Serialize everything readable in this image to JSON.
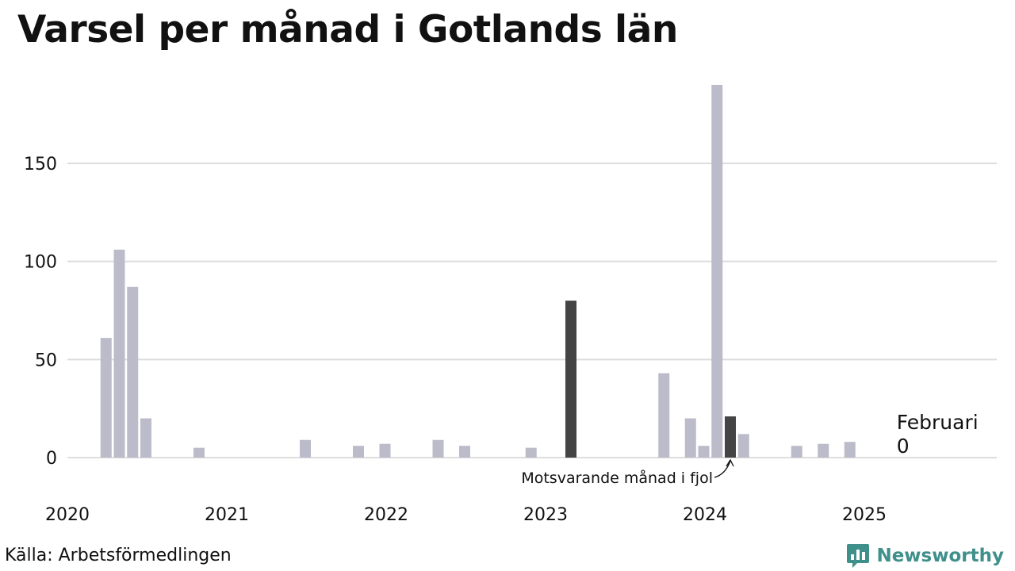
{
  "title": "Varsel per månad i Gotlands län",
  "source": "Källa: Arbetsförmedlingen",
  "brand": {
    "name": "Newsworthy",
    "icon": "newsworthy-logo-icon",
    "color": "#3f8f8b"
  },
  "colors": {
    "bar": "#bcbbc9",
    "highlight": "#444444",
    "grid": "#dddddd"
  },
  "annotation": "Motsvarande månad i fjol",
  "callout": {
    "month": "Februari",
    "value": "0"
  },
  "chart_data": {
    "type": "bar",
    "title": "Varsel per månad i Gotlands län",
    "xlabel": "",
    "ylabel": "",
    "ylim": [
      0,
      190
    ],
    "yticks": [
      0,
      50,
      100,
      150
    ],
    "xticks": [
      "2020",
      "2021",
      "2022",
      "2023",
      "2024",
      "2025"
    ],
    "grid": true,
    "x_start": "2020-01",
    "x_end": "2025-12",
    "series": [
      {
        "values": [
          {
            "month": "2020-02",
            "value": 61
          },
          {
            "month": "2020-03",
            "value": 106
          },
          {
            "month": "2020-04",
            "value": 87
          },
          {
            "month": "2020-05",
            "value": 20
          },
          {
            "month": "2020-09",
            "value": 5
          },
          {
            "month": "2021-05",
            "value": 9
          },
          {
            "month": "2021-09",
            "value": 6
          },
          {
            "month": "2021-11",
            "value": 7
          },
          {
            "month": "2022-03",
            "value": 9
          },
          {
            "month": "2022-05",
            "value": 6
          },
          {
            "month": "2022-10",
            "value": 5
          },
          {
            "month": "2023-01",
            "value": 80,
            "highlight": true
          },
          {
            "month": "2023-08",
            "value": 43
          },
          {
            "month": "2023-10",
            "value": 20
          },
          {
            "month": "2023-11",
            "value": 6
          },
          {
            "month": "2023-12",
            "value": 190
          },
          {
            "month": "2024-01",
            "value": 21,
            "highlight": true
          },
          {
            "month": "2024-02",
            "value": 12
          },
          {
            "month": "2024-06",
            "value": 6
          },
          {
            "month": "2024-08",
            "value": 7
          },
          {
            "month": "2024-10",
            "value": 8
          },
          {
            "month": "2025-02",
            "value": 0
          }
        ]
      }
    ]
  }
}
